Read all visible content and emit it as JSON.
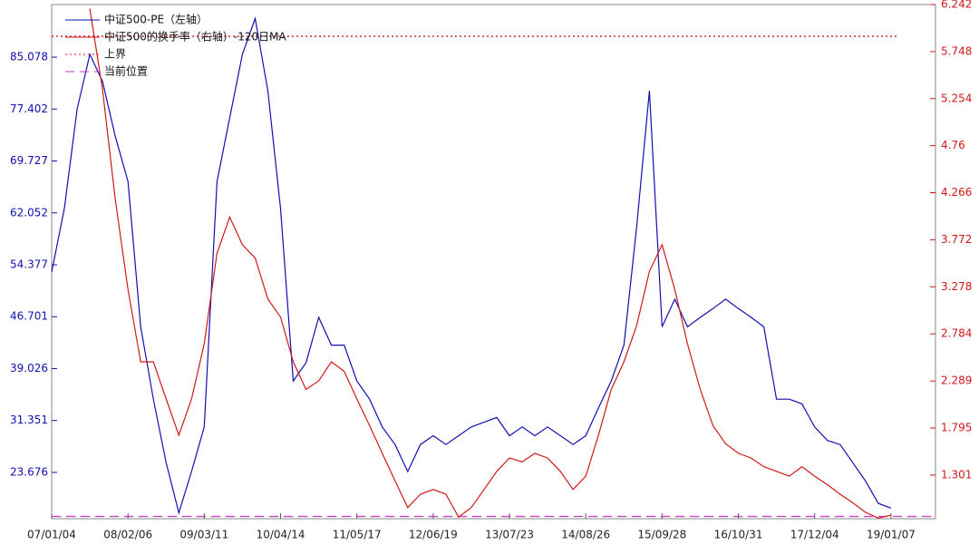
{
  "chart_data": {
    "type": "line",
    "x": [
      0,
      2,
      4,
      6,
      8,
      10,
      12,
      14,
      16,
      18,
      20,
      22,
      24,
      26,
      28,
      30,
      32,
      34,
      36,
      38,
      40,
      42,
      44,
      46,
      48,
      50,
      52,
      54,
      56,
      58,
      60,
      62,
      64,
      66,
      68,
      70,
      72,
      74,
      76,
      78,
      80,
      82,
      84,
      86,
      88,
      90,
      92,
      94,
      96,
      98,
      100,
      102,
      104,
      106,
      108,
      110,
      112,
      114,
      116,
      118,
      120,
      122,
      124,
      126,
      128,
      130,
      132
    ],
    "xlim": [
      0,
      139
    ],
    "xticks": [
      {
        "value": 0,
        "label": "07/01/04"
      },
      {
        "value": 12,
        "label": "08/02/06"
      },
      {
        "value": 24,
        "label": "09/03/11"
      },
      {
        "value": 36,
        "label": "10/04/14"
      },
      {
        "value": 48,
        "label": "11/05/17"
      },
      {
        "value": 60,
        "label": "12/06/19"
      },
      {
        "value": 72,
        "label": "13/07/23"
      },
      {
        "value": 84,
        "label": "14/08/26"
      },
      {
        "value": 96,
        "label": "15/09/28"
      },
      {
        "value": 108,
        "label": "16/10/31"
      },
      {
        "value": 120,
        "label": "17/12/04"
      },
      {
        "value": 132,
        "label": "19/01/07"
      }
    ],
    "ylim": [
      16.83,
      92.86
    ],
    "yticks": [
      23.676,
      31.351,
      39.026,
      46.701,
      54.377,
      62.052,
      69.727,
      77.402,
      85.078
    ],
    "y2lim": [
      0.843,
      6.242
    ],
    "y2ticks": [
      1.301,
      1.795,
      2.289,
      2.784,
      3.278,
      3.772,
      4.266,
      4.76,
      5.254,
      5.748,
      6.242
    ],
    "series": [
      {
        "name": "中证500-PE（左轴）",
        "color": "#1010b0",
        "values": [
          53.3,
          62.7,
          77.4,
          85.5,
          81.5,
          73.4,
          66.7,
          45.2,
          34.5,
          25.1,
          17.7,
          23.8,
          30.4,
          66.7,
          76.1,
          85.5,
          90.8,
          80.1,
          62.7,
          37.2,
          39.9,
          46.6,
          42.5,
          42.5,
          37.2,
          34.5,
          30.4,
          27.8,
          23.8,
          27.8,
          29.1,
          27.8,
          29.1,
          30.4,
          31.1,
          31.8,
          29.1,
          30.4,
          29.1,
          30.4,
          29.1,
          27.8,
          29.1,
          33.2,
          37.2,
          42.5,
          59.9,
          80.1,
          45.2,
          49.3,
          45.2,
          46.6,
          47.9,
          49.3,
          47.9,
          46.6,
          45.2,
          34.5,
          34.5,
          33.8,
          30.4,
          28.4,
          27.8,
          25.1,
          22.4,
          19.1,
          18.4
        ]
      },
      {
        "name": "中证500的换手率（右轴）-120日MA",
        "color": "#d01818",
        "axis": "y2",
        "values": [
          null,
          null,
          null,
          6.2,
          5.35,
          4.2,
          3.25,
          2.49,
          2.49,
          2.1,
          1.72,
          2.1,
          2.68,
          3.63,
          4.01,
          3.72,
          3.58,
          3.15,
          2.96,
          2.49,
          2.2,
          2.29,
          2.49,
          2.39,
          2.1,
          1.82,
          1.53,
          1.24,
          0.96,
          1.1,
          1.15,
          1.1,
          0.86,
          0.96,
          1.15,
          1.34,
          1.48,
          1.44,
          1.53,
          1.48,
          1.34,
          1.15,
          1.29,
          1.72,
          2.2,
          2.49,
          2.87,
          3.44,
          3.72,
          3.25,
          2.68,
          2.2,
          1.82,
          1.63,
          1.53,
          1.48,
          1.39,
          1.34,
          1.29,
          1.39,
          1.29,
          1.2,
          1.1,
          1.01,
          0.91,
          0.85,
          0.88
        ]
      }
    ],
    "hlines": [
      {
        "name": "上界",
        "value": 88.16,
        "color": "#d01818",
        "dash": "2,3"
      },
      {
        "name": "当前位置",
        "value": 17.17,
        "color": "#cc33cc",
        "dash": "10,6"
      }
    ]
  }
}
